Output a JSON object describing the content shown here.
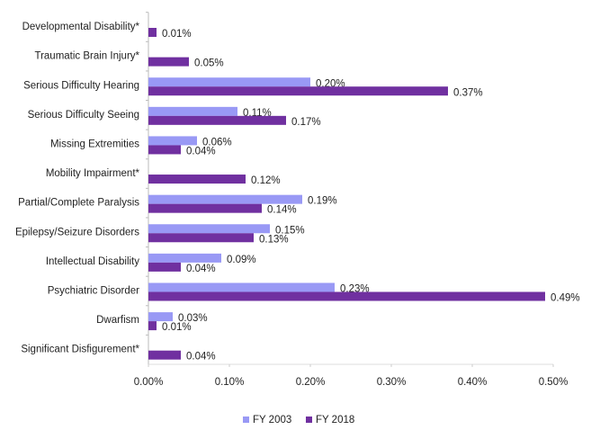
{
  "chart_data": {
    "type": "hbar",
    "categories": [
      "Developmental Disability*",
      "Traumatic Brain Injury*",
      "Serious Difficulty Hearing",
      "Serious Difficulty Seeing",
      "Missing Extremities",
      "Mobility Impairment*",
      "Partial/Complete Paralysis",
      "Epilepsy/Seizure Disorders",
      "Intellectual Disability",
      "Psychiatric Disorder",
      "Dwarfism",
      "Significant Disfigurement*"
    ],
    "series": [
      {
        "name": "FY 2003",
        "color": "#9999f5",
        "values": [
          null,
          null,
          0.2,
          0.11,
          0.06,
          null,
          0.19,
          0.15,
          0.09,
          0.23,
          0.03,
          null
        ],
        "value_labels": [
          null,
          null,
          "0.20%",
          "0.11%",
          "0.06%",
          null,
          "0.19%",
          "0.15%",
          "0.09%",
          "0.23%",
          "0.03%",
          null
        ]
      },
      {
        "name": "FY 2018",
        "color": "#7030a0",
        "values": [
          0.01,
          0.05,
          0.37,
          0.17,
          0.04,
          0.12,
          0.14,
          0.13,
          0.04,
          0.49,
          0.01,
          0.04
        ],
        "value_labels": [
          "0.01%",
          "0.05%",
          "0.37%",
          "0.17%",
          "0.04%",
          "0.12%",
          "0.14%",
          "0.13%",
          "0.04%",
          "0.49%",
          "0.01%",
          "0.04%"
        ]
      }
    ],
    "xlim": [
      0,
      0.5
    ],
    "xticks": [
      {
        "value": 0,
        "label": "0.00%"
      },
      {
        "value": 0.1,
        "label": "0.10%"
      },
      {
        "value": 0.2,
        "label": "0.20%"
      },
      {
        "value": 0.3,
        "label": "0.30%"
      },
      {
        "value": 0.4,
        "label": "0.40%"
      },
      {
        "value": 0.5,
        "label": "0.50%"
      }
    ],
    "legend": "bottom"
  }
}
